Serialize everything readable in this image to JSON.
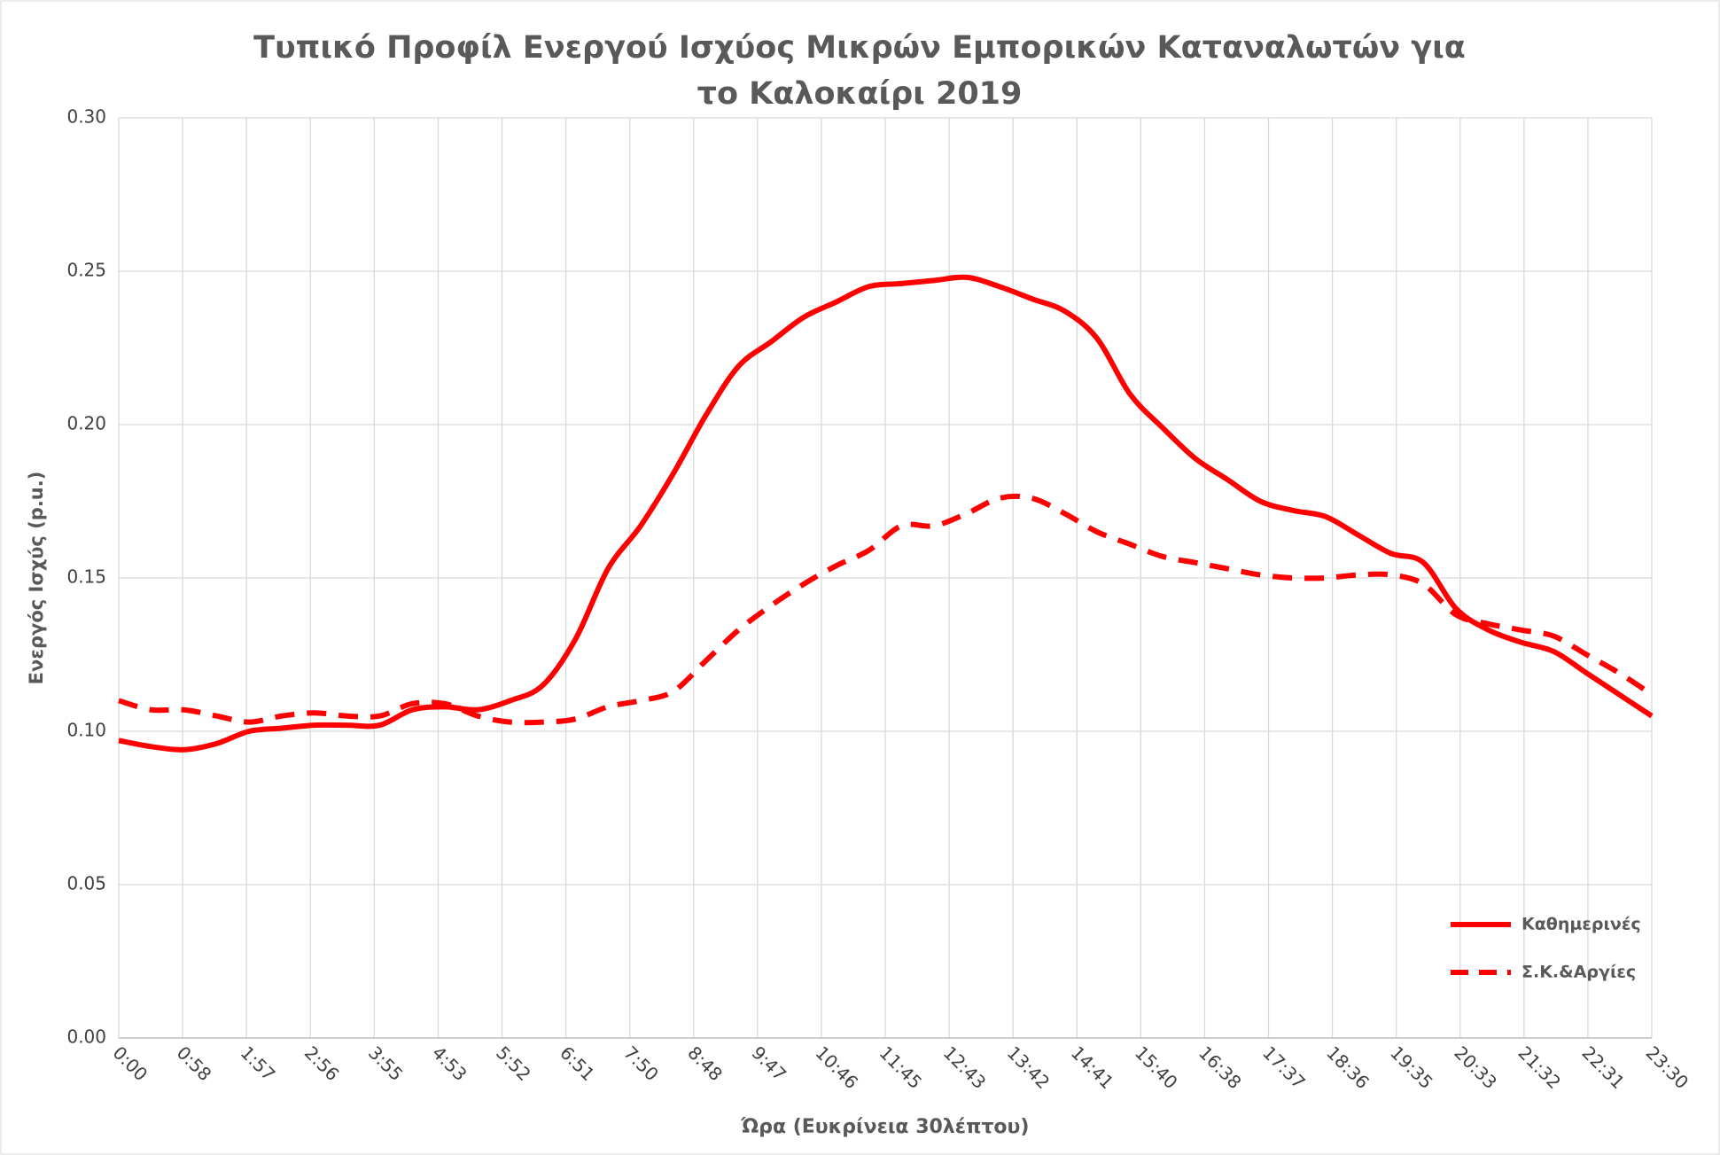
{
  "chart_data": {
    "type": "line",
    "title": "Τυπικό Προφίλ Ενεργού Ισχύος Μικρών Εμπορικών Καταναλωτών για το Καλοκαίρι 2019",
    "x_label": "Ώρα (Ευκρίνεια 30λέπτου)",
    "y_label": "Ενεργός Ισχύς (p.u.)",
    "x": [
      0,
      30,
      60,
      90,
      120,
      150,
      180,
      210,
      240,
      270,
      300,
      330,
      360,
      390,
      420,
      450,
      480,
      510,
      540,
      570,
      600,
      630,
      660,
      690,
      720,
      750,
      780,
      810,
      840,
      870,
      900,
      930,
      960,
      990,
      1020,
      1050,
      1080,
      1110,
      1140,
      1170,
      1200,
      1230,
      1260,
      1290,
      1320,
      1350,
      1380,
      1410
    ],
    "series": [
      {
        "name": "Καθημερινές",
        "color": "#ff0000",
        "dash": false,
        "values": [
          0.097,
          0.095,
          0.094,
          0.096,
          0.1,
          0.101,
          0.102,
          0.102,
          0.102,
          0.107,
          0.108,
          0.107,
          0.11,
          0.115,
          0.13,
          0.153,
          0.167,
          0.184,
          0.203,
          0.219,
          0.227,
          0.235,
          0.24,
          0.245,
          0.246,
          0.247,
          0.248,
          0.245,
          0.241,
          0.237,
          0.228,
          0.21,
          0.199,
          0.189,
          0.182,
          0.175,
          0.172,
          0.17,
          0.164,
          0.158,
          0.155,
          0.14,
          0.133,
          0.129,
          0.126,
          0.119,
          0.112,
          0.105
        ]
      },
      {
        "name": "Σ.Κ.&Αργίες",
        "color": "#ff0000",
        "dash": true,
        "values": [
          0.11,
          0.107,
          0.107,
          0.105,
          0.103,
          0.105,
          0.106,
          0.105,
          0.105,
          0.109,
          0.109,
          0.105,
          0.103,
          0.103,
          0.104,
          0.108,
          0.11,
          0.113,
          0.123,
          0.133,
          0.141,
          0.148,
          0.154,
          0.159,
          0.167,
          0.167,
          0.171,
          0.176,
          0.176,
          0.171,
          0.165,
          0.161,
          0.157,
          0.155,
          0.153,
          0.151,
          0.15,
          0.15,
          0.151,
          0.151,
          0.148,
          0.138,
          0.135,
          0.133,
          0.131,
          0.125,
          0.119,
          0.112
        ]
      }
    ],
    "xlim": [
      0,
      1410
    ],
    "xticks": [
      {
        "value": 0,
        "label": "0:00"
      },
      {
        "value": 58.75,
        "label": "0:58"
      },
      {
        "value": 117.5,
        "label": "1:57"
      },
      {
        "value": 176.25,
        "label": "2:56"
      },
      {
        "value": 235,
        "label": "3:55"
      },
      {
        "value": 293.75,
        "label": "4:53"
      },
      {
        "value": 352.5,
        "label": "5:52"
      },
      {
        "value": 411.25,
        "label": "6:51"
      },
      {
        "value": 470,
        "label": "7:50"
      },
      {
        "value": 528.75,
        "label": "8:48"
      },
      {
        "value": 587.5,
        "label": "9:47"
      },
      {
        "value": 646.25,
        "label": "10:46"
      },
      {
        "value": 705,
        "label": "11:45"
      },
      {
        "value": 763.75,
        "label": "12:43"
      },
      {
        "value": 822.5,
        "label": "13:42"
      },
      {
        "value": 881.25,
        "label": "14:41"
      },
      {
        "value": 940,
        "label": "15:40"
      },
      {
        "value": 998.75,
        "label": "16:38"
      },
      {
        "value": 1057.5,
        "label": "17:37"
      },
      {
        "value": 1116.25,
        "label": "18:36"
      },
      {
        "value": 1175,
        "label": "19:35"
      },
      {
        "value": 1233.75,
        "label": "20:33"
      },
      {
        "value": 1292.5,
        "label": "21:32"
      },
      {
        "value": 1351.25,
        "label": "22:31"
      },
      {
        "value": 1410,
        "label": "23:30"
      }
    ],
    "ylim": [
      0,
      0.3
    ],
    "yticks": [
      {
        "value": 0,
        "label": "0.00"
      },
      {
        "value": 0.05,
        "label": "0.05"
      },
      {
        "value": 0.1,
        "label": "0.10"
      },
      {
        "value": 0.15,
        "label": "0.15"
      },
      {
        "value": 0.2,
        "label": "0.20"
      },
      {
        "value": 0.25,
        "label": "0.25"
      },
      {
        "value": 0.3,
        "label": "0.30"
      }
    ],
    "grid": true,
    "legend": "lower right"
  }
}
